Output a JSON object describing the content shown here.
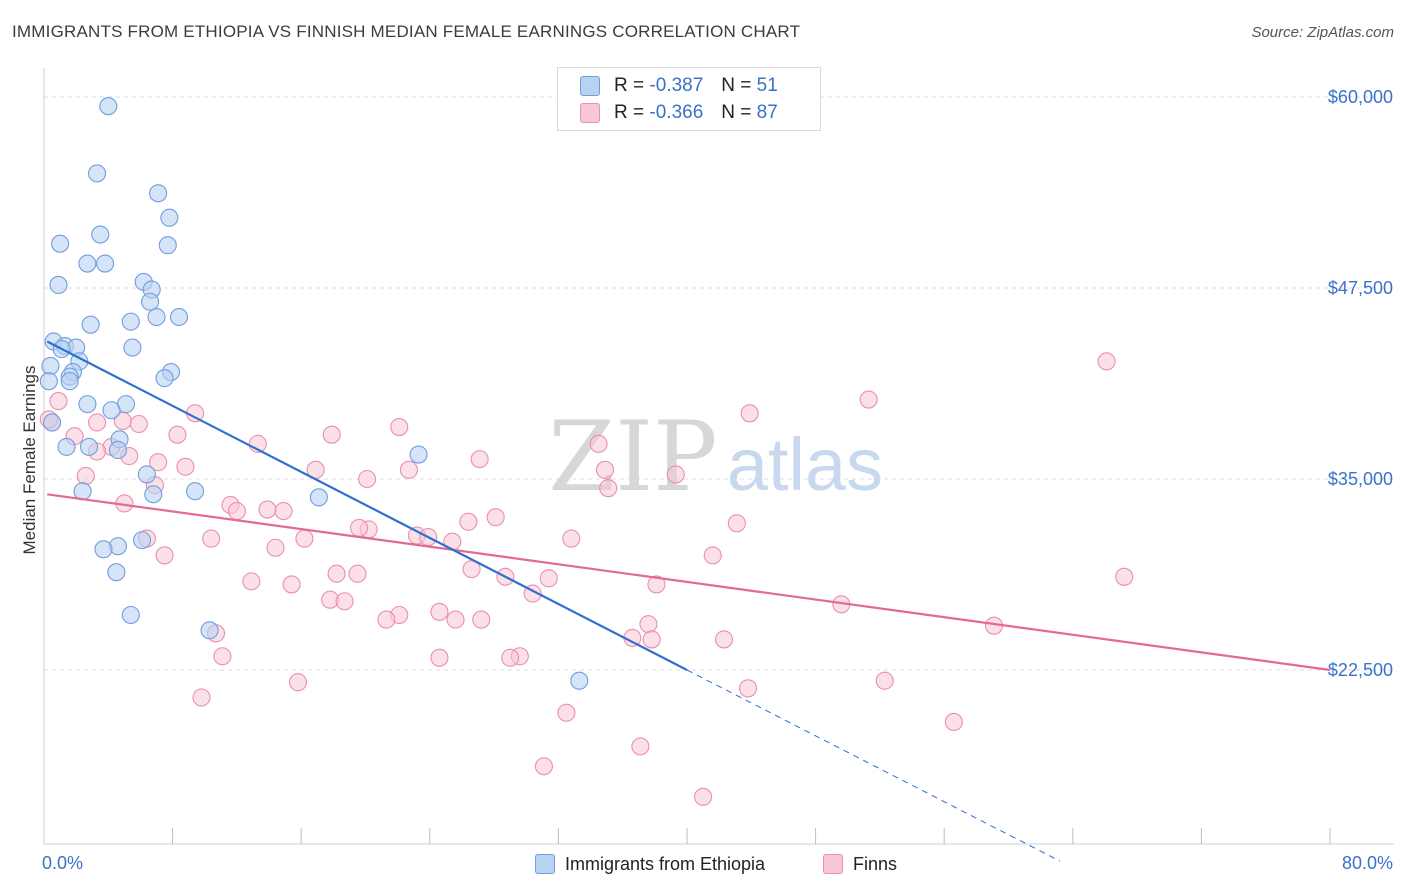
{
  "title": "IMMIGRANTS FROM ETHIOPIA VS FINNISH MEDIAN FEMALE EARNINGS CORRELATION CHART",
  "source": "Source: ZipAtlas.com",
  "watermark": {
    "zip": "ZIP",
    "atlas": "atlas"
  },
  "legend": {
    "r_label": "R =",
    "n_label": "N =",
    "series": [
      {
        "r": "-0.387",
        "n": "51"
      },
      {
        "r": "-0.366",
        "n": "87"
      }
    ]
  },
  "colors": {
    "ethiopia_fill": "#b9d2f2",
    "ethiopia_stroke": "#6f9ede",
    "ethiopia_line": "#2e6fd1",
    "finns_fill": "#f9c6d6",
    "finns_stroke": "#ea8fae",
    "finns_line": "#e36a93",
    "axis_text": "#3a72c9",
    "grid": "#d9dde6"
  },
  "chart_data": {
    "type": "scatter",
    "title": "IMMIGRANTS FROM ETHIOPIA VS FINNISH MEDIAN FEMALE EARNINGS CORRELATION CHART",
    "xlabel": "",
    "ylabel": "Median Female Earnings",
    "xlim": [
      0,
      80
    ],
    "ylim": [
      12000,
      61200
    ],
    "x_tick_labels": [
      {
        "value": 0,
        "label": "0.0%"
      },
      {
        "value": 80,
        "label": "80.0%"
      }
    ],
    "y_ticks": [
      {
        "value": 22500,
        "label": "$22,500"
      },
      {
        "value": 35000,
        "label": "$35,000"
      },
      {
        "value": 47500,
        "label": "$47,500"
      },
      {
        "value": 60000,
        "label": "$60,000"
      }
    ],
    "series": [
      {
        "name": "Immigrants from Ethiopia",
        "r": -0.387,
        "n": 51,
        "trend": {
          "x0": 0.2,
          "y0": 44000,
          "x1": 40,
          "y1": 22500,
          "dash_to_x": 63.2,
          "dash_to_y": 10000
        },
        "points": [
          [
            4.0,
            59400
          ],
          [
            3.3,
            55000
          ],
          [
            7.1,
            53700
          ],
          [
            7.8,
            52100
          ],
          [
            3.5,
            51000
          ],
          [
            1.0,
            50400
          ],
          [
            7.7,
            50300
          ],
          [
            2.7,
            49100
          ],
          [
            3.8,
            49100
          ],
          [
            0.9,
            47700
          ],
          [
            6.2,
            47900
          ],
          [
            6.7,
            47400
          ],
          [
            6.6,
            46600
          ],
          [
            7.0,
            45600
          ],
          [
            5.4,
            45300
          ],
          [
            8.4,
            45600
          ],
          [
            2.9,
            45100
          ],
          [
            0.6,
            44000
          ],
          [
            1.3,
            43700
          ],
          [
            2.0,
            43600
          ],
          [
            5.5,
            43600
          ],
          [
            1.1,
            43500
          ],
          [
            2.2,
            42700
          ],
          [
            0.4,
            42400
          ],
          [
            1.8,
            42000
          ],
          [
            7.9,
            42000
          ],
          [
            1.6,
            41700
          ],
          [
            7.5,
            41600
          ],
          [
            0.3,
            41400
          ],
          [
            1.6,
            41400
          ],
          [
            2.7,
            39900
          ],
          [
            5.1,
            39900
          ],
          [
            4.2,
            39500
          ],
          [
            4.7,
            37600
          ],
          [
            2.8,
            37100
          ],
          [
            4.6,
            36900
          ],
          [
            23.3,
            36600
          ],
          [
            6.4,
            35300
          ],
          [
            6.8,
            34000
          ],
          [
            9.4,
            34200
          ],
          [
            2.4,
            34200
          ],
          [
            17.1,
            33800
          ],
          [
            6.1,
            31000
          ],
          [
            4.6,
            30600
          ],
          [
            3.7,
            30400
          ],
          [
            4.5,
            28900
          ],
          [
            5.4,
            26100
          ],
          [
            10.3,
            25100
          ],
          [
            33.3,
            21800
          ],
          [
            0.5,
            38700
          ],
          [
            1.4,
            37100
          ]
        ]
      },
      {
        "name": "Finns",
        "r": -0.366,
        "n": 87,
        "trend": {
          "x0": 0.2,
          "y0": 34000,
          "x1": 80,
          "y1": 22500
        },
        "points": [
          [
            66.1,
            42700
          ],
          [
            51.3,
            40200
          ],
          [
            43.9,
            39300
          ],
          [
            9.4,
            39300
          ],
          [
            0.9,
            40100
          ],
          [
            0.5,
            38700
          ],
          [
            3.3,
            38700
          ],
          [
            4.9,
            38800
          ],
          [
            5.9,
            38600
          ],
          [
            1.9,
            37800
          ],
          [
            8.3,
            37900
          ],
          [
            22.1,
            38400
          ],
          [
            17.9,
            37900
          ],
          [
            13.3,
            37300
          ],
          [
            34.5,
            37300
          ],
          [
            4.2,
            37100
          ],
          [
            3.3,
            36800
          ],
          [
            5.3,
            36500
          ],
          [
            27.1,
            36300
          ],
          [
            8.8,
            35800
          ],
          [
            16.9,
            35600
          ],
          [
            22.7,
            35600
          ],
          [
            34.9,
            35600
          ],
          [
            39.3,
            35300
          ],
          [
            2.6,
            35200
          ],
          [
            20.1,
            35000
          ],
          [
            6.9,
            34600
          ],
          [
            35.1,
            34400
          ],
          [
            5.0,
            33400
          ],
          [
            11.6,
            33300
          ],
          [
            12.0,
            32900
          ],
          [
            13.9,
            33000
          ],
          [
            14.9,
            32900
          ],
          [
            28.1,
            32500
          ],
          [
            26.4,
            32200
          ],
          [
            20.2,
            31700
          ],
          [
            43.1,
            32100
          ],
          [
            19.6,
            31800
          ],
          [
            23.2,
            31300
          ],
          [
            23.9,
            31200
          ],
          [
            6.4,
            31100
          ],
          [
            10.4,
            31100
          ],
          [
            16.2,
            31100
          ],
          [
            32.8,
            31100
          ],
          [
            25.4,
            30900
          ],
          [
            14.4,
            30500
          ],
          [
            7.5,
            30000
          ],
          [
            41.6,
            30000
          ],
          [
            26.6,
            29100
          ],
          [
            18.2,
            28800
          ],
          [
            19.5,
            28800
          ],
          [
            28.7,
            28600
          ],
          [
            31.4,
            28500
          ],
          [
            12.9,
            28300
          ],
          [
            15.4,
            28100
          ],
          [
            38.1,
            28100
          ],
          [
            67.2,
            28600
          ],
          [
            30.4,
            27500
          ],
          [
            17.8,
            27100
          ],
          [
            18.7,
            27000
          ],
          [
            49.6,
            26800
          ],
          [
            22.1,
            26100
          ],
          [
            24.6,
            26300
          ],
          [
            25.6,
            25800
          ],
          [
            21.3,
            25800
          ],
          [
            27.2,
            25800
          ],
          [
            37.6,
            25500
          ],
          [
            59.1,
            25400
          ],
          [
            10.7,
            24900
          ],
          [
            37.8,
            24500
          ],
          [
            42.3,
            24500
          ],
          [
            11.1,
            23400
          ],
          [
            24.6,
            23300
          ],
          [
            29.6,
            23400
          ],
          [
            29.0,
            23300
          ],
          [
            15.8,
            21700
          ],
          [
            52.3,
            21800
          ],
          [
            43.8,
            21300
          ],
          [
            9.8,
            20700
          ],
          [
            32.5,
            19700
          ],
          [
            56.6,
            19100
          ],
          [
            37.1,
            17500
          ],
          [
            31.1,
            16200
          ],
          [
            41.0,
            14200
          ],
          [
            0.3,
            38900
          ],
          [
            7.1,
            36100
          ],
          [
            36.6,
            24600
          ]
        ]
      }
    ]
  }
}
